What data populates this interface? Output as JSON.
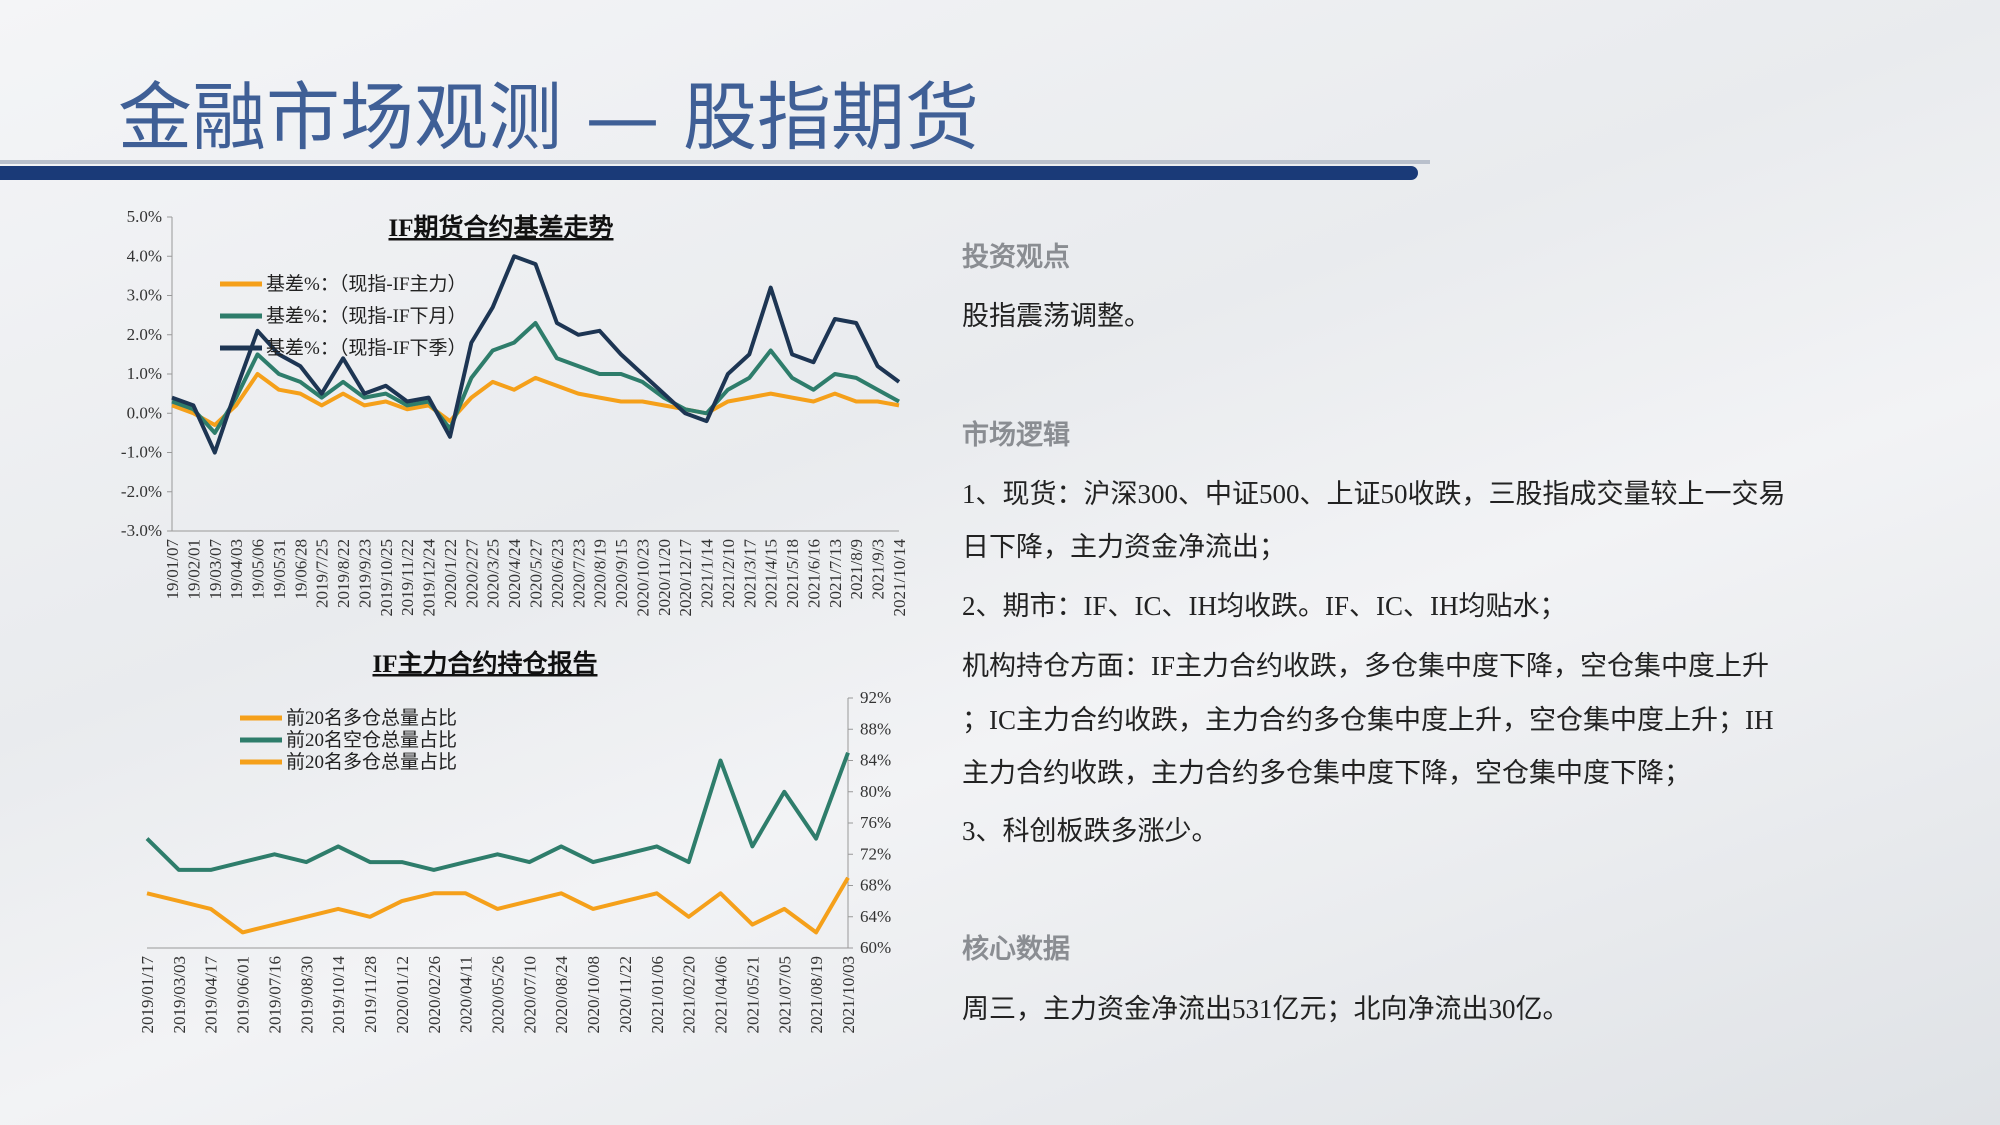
{
  "header": {
    "title": "金融市场观测 — 股指期货"
  },
  "chart_data": [
    {
      "type": "line",
      "title": "IF期货合约基差走势",
      "categories": [
        "19/01/07",
        "19/02/01",
        "19/03/07",
        "19/04/03",
        "19/05/06",
        "19/05/31",
        "19/06/28",
        "2019/7/25",
        "2019/8/22",
        "2019/9/23",
        "2019/10/25",
        "2019/11/22",
        "2019/12/24",
        "2020/1/22",
        "2020/2/27",
        "2020/3/25",
        "2020/4/24",
        "2020/5/27",
        "2020/6/23",
        "2020/7/23",
        "2020/8/19",
        "2020/9/15",
        "2020/10/23",
        "2020/11/20",
        "2020/12/17",
        "2021/1/14",
        "2021/2/10",
        "2021/3/17",
        "2021/4/15",
        "2021/5/18",
        "2021/6/16",
        "2021/7/13",
        "2021/8/9",
        "2021/9/3",
        "2021/10/14"
      ],
      "series": [
        {
          "name": "基差%：（现指-IF主力）",
          "color": "#f5a01a",
          "values": [
            0.2,
            0.0,
            -0.3,
            0.2,
            1.0,
            0.6,
            0.5,
            0.2,
            0.5,
            0.2,
            0.3,
            0.1,
            0.2,
            -0.2,
            0.4,
            0.8,
            0.6,
            0.9,
            0.7,
            0.5,
            0.4,
            0.3,
            0.3,
            0.2,
            0.1,
            0.0,
            0.3,
            0.4,
            0.5,
            0.4,
            0.3,
            0.5,
            0.3,
            0.3,
            0.2
          ]
        },
        {
          "name": "基差%：（现指-IF下月）",
          "color": "#2e7d6b",
          "values": [
            0.3,
            0.1,
            -0.5,
            0.4,
            1.5,
            1.0,
            0.8,
            0.4,
            0.8,
            0.4,
            0.5,
            0.2,
            0.3,
            -0.4,
            0.9,
            1.6,
            1.8,
            2.3,
            1.4,
            1.2,
            1.0,
            1.0,
            0.8,
            0.4,
            0.1,
            0.0,
            0.6,
            0.9,
            1.6,
            0.9,
            0.6,
            1.0,
            0.9,
            0.6,
            0.3
          ]
        },
        {
          "name": "基差%：（现指-IF下季）",
          "color": "#1d3553",
          "values": [
            0.4,
            0.2,
            -1.0,
            0.6,
            2.1,
            1.5,
            1.2,
            0.5,
            1.4,
            0.5,
            0.7,
            0.3,
            0.4,
            -0.6,
            1.8,
            2.7,
            4.0,
            3.8,
            2.3,
            2.0,
            2.1,
            1.5,
            1.0,
            0.5,
            0.0,
            -0.2,
            1.0,
            1.5,
            3.2,
            1.5,
            1.3,
            2.4,
            2.3,
            1.2,
            0.8
          ]
        }
      ],
      "ylim": [
        -3,
        5
      ],
      "yticks": [
        {
          "value": 5,
          "label": "5.0%"
        },
        {
          "value": 4,
          "label": "4.0%"
        },
        {
          "value": 3,
          "label": "3.0%"
        },
        {
          "value": 2,
          "label": "2.0%"
        },
        {
          "value": 1,
          "label": "1.0%"
        },
        {
          "value": 0,
          "label": "0.0%"
        },
        {
          "value": -1,
          "label": "-1.0%"
        },
        {
          "value": -2,
          "label": "-2.0%"
        },
        {
          "value": -3,
          "label": "-3.0%"
        }
      ]
    },
    {
      "type": "line",
      "title": "IF主力合约持仓报告",
      "categories": [
        "2019/01/17",
        "2019/03/03",
        "2019/04/17",
        "2019/06/01",
        "2019/07/16",
        "2019/08/30",
        "2019/10/14",
        "2019/11/28",
        "2020/01/12",
        "2020/02/26",
        "2020/04/11",
        "2020/05/26",
        "2020/07/10",
        "2020/08/24",
        "2020/10/08",
        "2020/11/22",
        "2021/01/06",
        "2021/02/20",
        "2021/04/06",
        "2021/05/21",
        "2021/07/05",
        "2021/08/19",
        "2021/10/03"
      ],
      "series": [
        {
          "name": "前20名多仓总量占比",
          "color": "#f5a01a",
          "axis": "y2",
          "values": [
            67,
            66,
            65,
            62,
            63,
            64,
            65,
            64,
            66,
            67,
            67,
            65,
            66,
            67,
            65,
            66,
            67,
            64,
            67,
            63,
            65,
            62,
            69
          ]
        },
        {
          "name": "前20名空仓总量占比",
          "color": "#2e7d6b",
          "axis": "y2",
          "values": [
            74,
            70,
            70,
            71,
            72,
            71,
            73,
            71,
            71,
            70,
            71,
            72,
            71,
            73,
            71,
            72,
            73,
            71,
            84,
            73,
            80,
            74,
            85
          ]
        },
        {
          "name": "前20名多仓总量占比",
          "color": "#f5a01a",
          "axis": "y2",
          "values": [
            null,
            null,
            null,
            null,
            null,
            null,
            null,
            null,
            null,
            null,
            null,
            null,
            null,
            null,
            null,
            null,
            null,
            null,
            null,
            null,
            null,
            null,
            null
          ]
        }
      ],
      "y2lim": [
        60,
        92
      ],
      "y2ticks": [
        {
          "value": 92,
          "label": "92%"
        },
        {
          "value": 88,
          "label": "88%"
        },
        {
          "value": 84,
          "label": "84%"
        },
        {
          "value": 80,
          "label": "80%"
        },
        {
          "value": 76,
          "label": "76%"
        },
        {
          "value": 72,
          "label": "72%"
        },
        {
          "value": 68,
          "label": "68%"
        },
        {
          "value": 64,
          "label": "64%"
        },
        {
          "value": 60,
          "label": "60%"
        }
      ]
    }
  ],
  "panel": {
    "sections": [
      {
        "heading": "投资观点",
        "lines": [
          "股指震荡调整。"
        ]
      },
      {
        "heading": "市场逻辑",
        "lines": [
          "1、现货：沪深300、中证500、上证50收跌，三股指成交量较上一交易",
          "日下降，主力资金净流出；",
          "2、期市：IF、IC、IH均收跌。IF、IC、IH均贴水；",
          "机构持仓方面：IF主力合约收跌，多仓集中度下降，空仓集中度上升",
          "；IC主力合约收跌，主力合约多仓集中度上升，空仓集中度上升；IH",
          "主力合约收跌，主力合约多仓集中度下降，空仓集中度下降；",
          "3、科创板跌多涨少。"
        ]
      },
      {
        "heading": "核心数据",
        "lines": [
          "周三，主力资金净流出531亿元；北向净流出30亿。"
        ]
      }
    ]
  }
}
